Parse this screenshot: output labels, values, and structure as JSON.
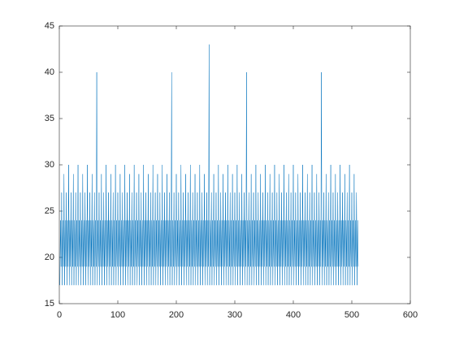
{
  "chart_data": {
    "type": "line",
    "x": [
      1,
      2,
      3,
      4,
      5,
      6,
      7,
      8,
      9,
      10,
      11,
      12,
      13,
      14,
      15,
      16,
      17,
      18,
      19,
      20,
      21,
      22,
      23,
      24,
      25,
      26,
      27,
      28,
      29,
      30,
      31,
      32,
      33,
      34,
      35,
      36,
      37,
      38,
      39,
      40,
      41,
      42,
      43,
      44,
      45,
      46,
      47,
      48,
      49,
      50,
      51,
      52,
      53,
      54,
      55,
      56,
      57,
      58,
      59,
      60,
      61,
      62,
      63,
      64,
      65,
      66,
      67,
      68,
      69,
      70,
      71,
      72,
      73,
      74,
      75,
      76,
      77,
      78,
      79,
      80,
      81,
      82,
      83,
      84,
      85,
      86,
      87,
      88,
      89,
      90,
      91,
      92,
      93,
      94,
      95,
      96,
      97,
      98,
      99,
      100,
      101,
      102,
      103,
      104,
      105,
      106,
      107,
      108,
      109,
      110,
      111,
      112,
      113,
      114,
      115,
      116,
      117,
      118,
      119,
      120,
      121,
      122,
      123,
      124,
      125,
      126,
      127,
      128,
      129,
      130,
      131,
      132,
      133,
      134,
      135,
      136,
      137,
      138,
      139,
      140,
      141,
      142,
      143,
      144,
      145,
      146,
      147,
      148,
      149,
      150,
      151,
      152,
      153,
      154,
      155,
      156,
      157,
      158,
      159,
      160,
      161,
      162,
      163,
      164,
      165,
      166,
      167,
      168,
      169,
      170,
      171,
      172,
      173,
      174,
      175,
      176,
      177,
      178,
      179,
      180,
      181,
      182,
      183,
      184,
      185,
      186,
      187,
      188,
      189,
      190,
      191,
      192,
      193,
      194,
      195,
      196,
      197,
      198,
      199,
      200,
      201,
      202,
      203,
      204,
      205,
      206,
      207,
      208,
      209,
      210,
      211,
      212,
      213,
      214,
      215,
      216,
      217,
      218,
      219,
      220,
      221,
      222,
      223,
      224,
      225,
      226,
      227,
      228,
      229,
      230,
      231,
      232,
      233,
      234,
      235,
      236,
      237,
      238,
      239,
      240,
      241,
      242,
      243,
      244,
      245,
      246,
      247,
      248,
      249,
      250,
      251,
      252,
      253,
      254,
      255,
      256,
      257,
      258,
      259,
      260,
      261,
      262,
      263,
      264,
      265,
      266,
      267,
      268,
      269,
      270,
      271,
      272,
      273,
      274,
      275,
      276,
      277,
      278,
      279,
      280,
      281,
      282,
      283,
      284,
      285,
      286,
      287,
      288,
      289,
      290,
      291,
      292,
      293,
      294,
      295,
      296,
      297,
      298,
      299,
      300,
      301,
      302,
      303,
      304,
      305,
      306,
      307,
      308,
      309,
      310,
      311,
      312,
      313,
      314,
      315,
      316,
      317,
      318,
      319,
      320,
      321,
      322,
      323,
      324,
      325,
      326,
      327,
      328,
      329,
      330,
      331,
      332,
      333,
      334,
      335,
      336,
      337,
      338,
      339,
      340,
      341,
      342,
      343,
      344,
      345,
      346,
      347,
      348,
      349,
      350,
      351,
      352,
      353,
      354,
      355,
      356,
      357,
      358,
      359,
      360,
      361,
      362,
      363,
      364,
      365,
      366,
      367,
      368,
      369,
      370,
      371,
      372,
      373,
      374,
      375,
      376,
      377,
      378,
      379,
      380,
      381,
      382,
      383,
      384,
      385,
      386,
      387,
      388,
      389,
      390,
      391,
      392,
      393,
      394,
      395,
      396,
      397,
      398,
      399,
      400,
      401,
      402,
      403,
      404,
      405,
      406,
      407,
      408,
      409,
      410,
      411,
      412,
      413,
      414,
      415,
      416,
      417,
      418,
      419,
      420,
      421,
      422,
      423,
      424,
      425,
      426,
      427,
      428,
      429,
      430,
      431,
      432,
      433,
      434,
      435,
      436,
      437,
      438,
      439,
      440,
      441,
      442,
      443,
      444,
      445,
      446,
      447,
      448,
      449,
      450,
      451,
      452,
      453,
      454,
      455,
      456,
      457,
      458,
      459,
      460,
      461,
      462,
      463,
      464,
      465,
      466,
      467,
      468,
      469,
      470,
      471,
      472,
      473,
      474,
      475,
      476,
      477,
      478,
      479,
      480,
      481,
      482,
      483,
      484,
      485,
      486,
      487,
      488,
      489,
      490,
      491,
      492,
      493,
      494,
      495,
      496,
      497,
      498,
      499,
      500,
      501,
      502,
      503,
      504,
      505,
      506,
      507,
      508,
      509,
      510,
      511
    ],
    "values": [
      17,
      24,
      19,
      27,
      17,
      24,
      19,
      29,
      17,
      24,
      19,
      27,
      17,
      24,
      19,
      30,
      17,
      24,
      19,
      27,
      17,
      24,
      19,
      29,
      17,
      24,
      19,
      27,
      17,
      24,
      19,
      30,
      17,
      24,
      19,
      27,
      17,
      24,
      19,
      29,
      17,
      24,
      19,
      27,
      17,
      24,
      19,
      30,
      17,
      24,
      19,
      27,
      17,
      24,
      19,
      29,
      17,
      24,
      19,
      27,
      17,
      24,
      19,
      40,
      17,
      24,
      19,
      27,
      17,
      24,
      19,
      29,
      17,
      24,
      19,
      27,
      17,
      24,
      19,
      30,
      17,
      24,
      19,
      27,
      17,
      24,
      19,
      29,
      17,
      24,
      19,
      27,
      17,
      24,
      19,
      30,
      17,
      24,
      19,
      27,
      17,
      24,
      19,
      29,
      17,
      24,
      19,
      27,
      17,
      24,
      19,
      30,
      17,
      24,
      19,
      27,
      17,
      24,
      19,
      29,
      17,
      24,
      19,
      27,
      17,
      24,
      19,
      30,
      17,
      24,
      19,
      27,
      17,
      24,
      19,
      29,
      17,
      24,
      19,
      27,
      17,
      24,
      19,
      30,
      17,
      24,
      19,
      27,
      17,
      24,
      19,
      29,
      17,
      24,
      19,
      27,
      17,
      24,
      19,
      30,
      17,
      24,
      19,
      27,
      17,
      24,
      19,
      29,
      17,
      24,
      19,
      27,
      17,
      24,
      19,
      30,
      17,
      24,
      19,
      27,
      17,
      24,
      19,
      29,
      17,
      24,
      19,
      27,
      17,
      24,
      19,
      40,
      17,
      24,
      19,
      27,
      17,
      24,
      19,
      29,
      17,
      24,
      19,
      27,
      17,
      24,
      19,
      30,
      17,
      24,
      19,
      27,
      17,
      24,
      19,
      29,
      17,
      24,
      19,
      27,
      17,
      24,
      19,
      30,
      17,
      24,
      19,
      27,
      17,
      24,
      19,
      29,
      17,
      24,
      19,
      27,
      17,
      24,
      19,
      30,
      17,
      24,
      19,
      27,
      17,
      24,
      19,
      29,
      17,
      24,
      19,
      27,
      17,
      24,
      19,
      43,
      17,
      24,
      19,
      27,
      17,
      24,
      19,
      29,
      17,
      24,
      19,
      27,
      17,
      24,
      19,
      30,
      17,
      24,
      19,
      27,
      17,
      24,
      19,
      29,
      17,
      24,
      19,
      27,
      17,
      24,
      19,
      30,
      17,
      24,
      19,
      27,
      17,
      24,
      19,
      29,
      17,
      24,
      19,
      27,
      17,
      24,
      19,
      30,
      17,
      24,
      19,
      27,
      17,
      24,
      19,
      29,
      17,
      24,
      19,
      27,
      17,
      24,
      19,
      40,
      17,
      24,
      19,
      27,
      17,
      24,
      19,
      29,
      17,
      24,
      19,
      27,
      17,
      24,
      19,
      30,
      17,
      24,
      19,
      27,
      17,
      24,
      19,
      29,
      17,
      24,
      19,
      27,
      17,
      24,
      19,
      30,
      17,
      24,
      19,
      27,
      17,
      24,
      19,
      29,
      17,
      24,
      19,
      27,
      17,
      24,
      19,
      30,
      17,
      24,
      19,
      27,
      17,
      24,
      19,
      29,
      17,
      24,
      19,
      27,
      17,
      24,
      19,
      30,
      17,
      24,
      19,
      27,
      17,
      24,
      19,
      29,
      17,
      24,
      19,
      27,
      17,
      24,
      19,
      30,
      17,
      24,
      19,
      27,
      17,
      24,
      19,
      29,
      17,
      24,
      19,
      27,
      17,
      24,
      19,
      30,
      17,
      24,
      19,
      27,
      17,
      24,
      19,
      29,
      17,
      24,
      19,
      27,
      17,
      24,
      19,
      30,
      17,
      24,
      19,
      27,
      17,
      24,
      19,
      29,
      17,
      24,
      19,
      27,
      17,
      24,
      19,
      40,
      17,
      24,
      19,
      27,
      17,
      24,
      19,
      29,
      17,
      24,
      19,
      27,
      17,
      24,
      19,
      30,
      17,
      24,
      19,
      27,
      17,
      24,
      19,
      29,
      17,
      24,
      19,
      27,
      17,
      24,
      19,
      30,
      17,
      24,
      19,
      27,
      17,
      24,
      19,
      29,
      17,
      24,
      19,
      27,
      17,
      24,
      19,
      30,
      17,
      24,
      19,
      27,
      17,
      24,
      19,
      29,
      17,
      24,
      19,
      27,
      17,
      24,
      19
    ],
    "color": "#0072bd",
    "xlim": [
      0,
      600
    ],
    "xticks": [
      0,
      100,
      200,
      300,
      400,
      500,
      600
    ],
    "ylim": [
      15,
      45
    ],
    "yticks": [
      15,
      20,
      25,
      30,
      35,
      40,
      45
    ],
    "grid": false
  }
}
